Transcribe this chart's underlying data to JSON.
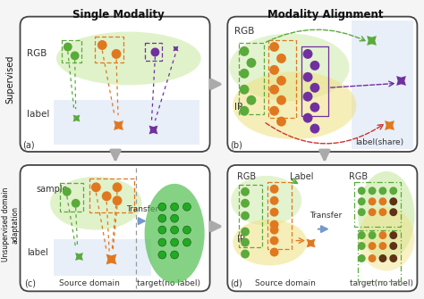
{
  "title_left": "Single Modality",
  "title_right": "Modality Alignment",
  "label_supervised": "Supervised",
  "label_unsupervised": "Unsupervised domain\nadaptation",
  "panel_a_label": "(a)",
  "panel_b_label": "(b)",
  "panel_c_label": "(c)",
  "panel_d_label": "(d)",
  "bg_color": "#f5f5f5",
  "green_color": "#5aaa3c",
  "orange_color": "#e07820",
  "purple_color": "#7030a0",
  "dark_green": "#2d8a0a",
  "brown_color": "#5c3317",
  "ellipse_green_fill": "#c8e8a0",
  "ellipse_yellow_fill": "#f0e080",
  "label_rect_fill": "#ccdcf0",
  "panel_border": "#333333"
}
